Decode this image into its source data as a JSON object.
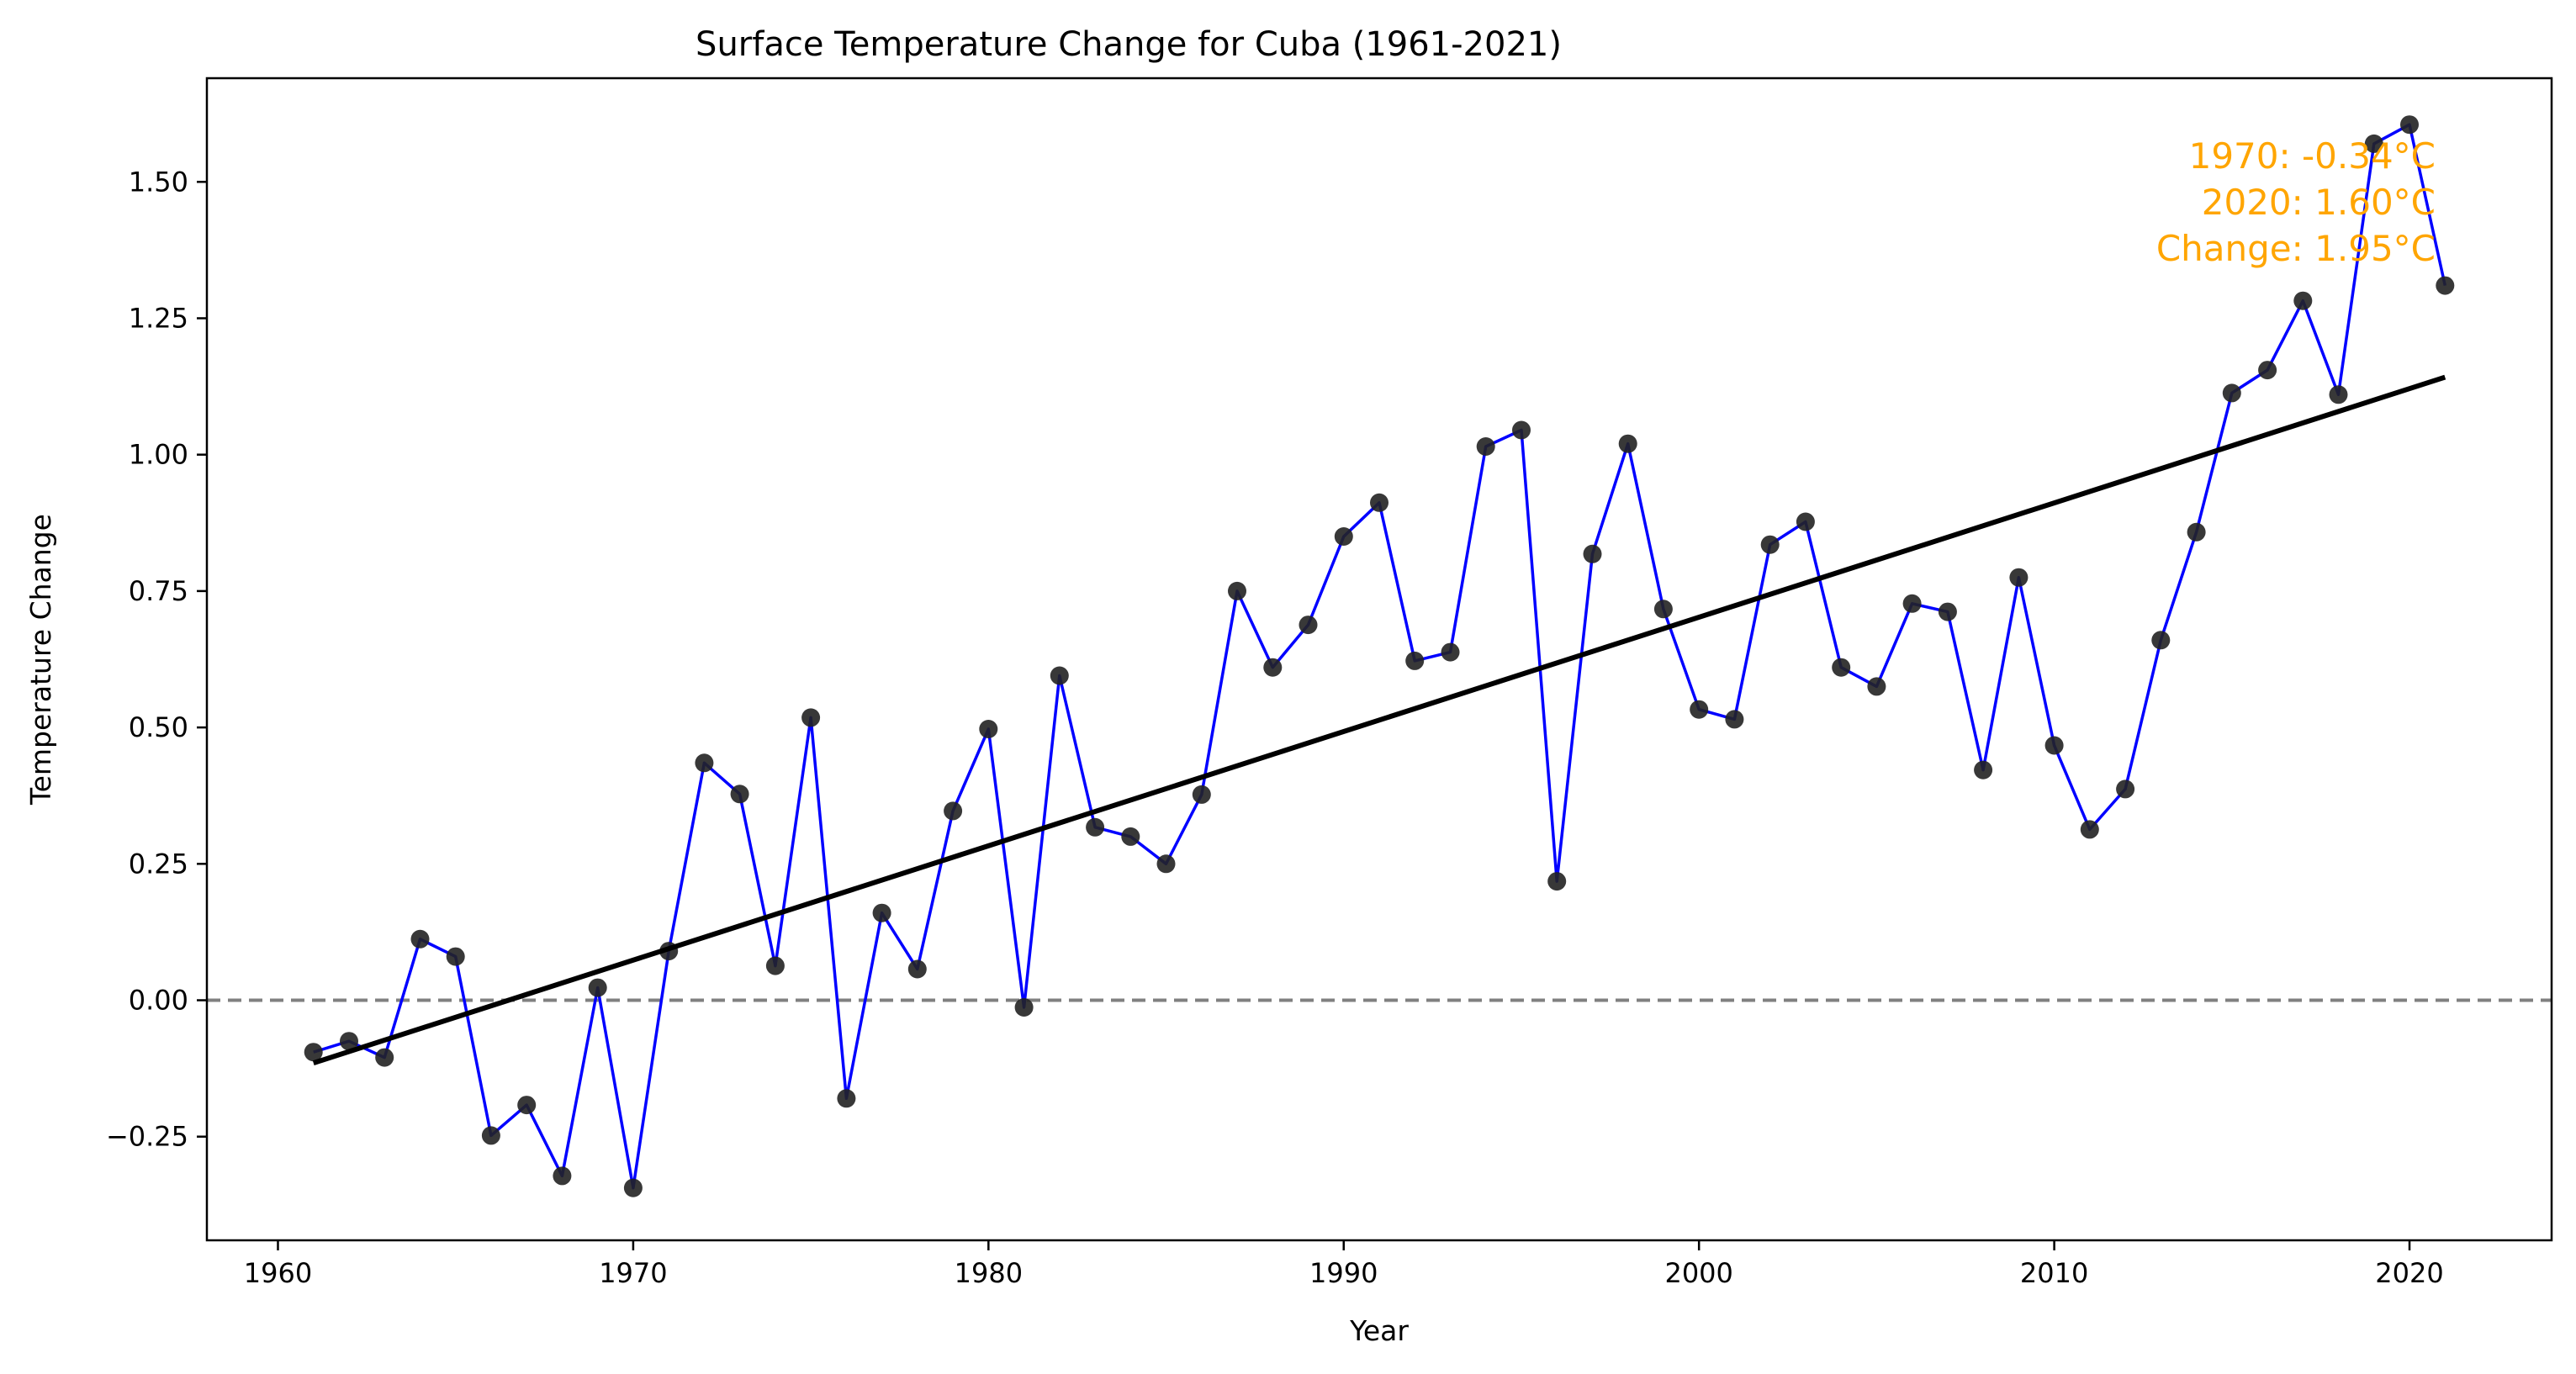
{
  "chart_data": {
    "type": "line",
    "title": "Surface Temperature Change for Cuba (1961-2021)",
    "xlabel": "Year",
    "ylabel": "Temperature Change",
    "xlim": [
      1958,
      2024
    ],
    "ylim": [
      -0.44,
      1.69
    ],
    "x_ticks": [
      1960,
      1970,
      1980,
      1990,
      2000,
      2010,
      2020
    ],
    "x_tick_labels": [
      "1960",
      "1970",
      "1980",
      "1990",
      "2000",
      "2010",
      "2020"
    ],
    "y_ticks": [
      -0.25,
      0.0,
      0.25,
      0.5,
      0.75,
      1.0,
      1.25,
      1.5
    ],
    "y_tick_labels": [
      "−0.25",
      "0.00",
      "0.25",
      "0.50",
      "0.75",
      "1.00",
      "1.25",
      "1.50"
    ],
    "grid": false,
    "series": [
      {
        "color": "#0000FF",
        "marker_color": "#222222",
        "x": [
          1961,
          1962,
          1963,
          1964,
          1965,
          1966,
          1967,
          1968,
          1969,
          1970,
          1971,
          1972,
          1973,
          1974,
          1975,
          1976,
          1977,
          1978,
          1979,
          1980,
          1981,
          1982,
          1983,
          1984,
          1985,
          1986,
          1987,
          1988,
          1989,
          1990,
          1991,
          1992,
          1993,
          1994,
          1995,
          1996,
          1997,
          1998,
          1999,
          2000,
          2001,
          2002,
          2003,
          2004,
          2005,
          2006,
          2007,
          2008,
          2009,
          2010,
          2011,
          2012,
          2013,
          2014,
          2015,
          2016,
          2017,
          2018,
          2019,
          2020,
          2021
        ],
        "y": [
          -0.095,
          -0.075,
          -0.105,
          0.112,
          0.08,
          -0.248,
          -0.192,
          -0.322,
          0.023,
          -0.344,
          0.09,
          0.435,
          0.378,
          0.063,
          0.518,
          -0.18,
          0.16,
          0.057,
          0.347,
          0.497,
          -0.013,
          0.595,
          0.317,
          0.3,
          0.25,
          0.377,
          0.75,
          0.61,
          0.688,
          0.85,
          0.912,
          0.622,
          0.638,
          1.015,
          1.045,
          0.218,
          0.818,
          1.02,
          0.717,
          0.533,
          0.515,
          0.835,
          0.877,
          0.61,
          0.575,
          0.727,
          0.712,
          0.422,
          0.775,
          0.467,
          0.313,
          0.387,
          0.66,
          0.858,
          1.113,
          1.155,
          1.282,
          1.11,
          1.57,
          1.605,
          1.31
        ]
      }
    ],
    "trend_line": {
      "color": "#000000",
      "x": [
        1961,
        2021
      ],
      "y": [
        -0.115,
        1.142
      ]
    },
    "reference_line": {
      "y": 0,
      "style": "dashed",
      "color": "#808080"
    },
    "annotation": {
      "color": "#FFA500",
      "lines": [
        "1970: -0.34°C",
        "2020: 1.60°C",
        "Change: 1.95°C"
      ]
    }
  }
}
